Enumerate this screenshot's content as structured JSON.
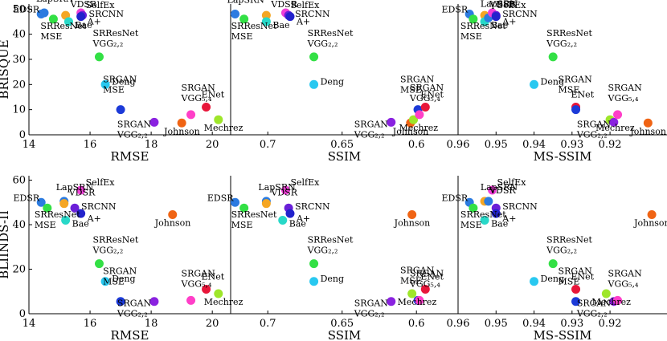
{
  "colors": {
    "EDSR": "#2b7be0",
    "LapSRN": "#2b7be0",
    "VDSR": "#f5a623",
    "SelfEx": "#f040d8",
    "SRCNN": "#6a1fd8",
    "SRResNet-MSE": "#33e045",
    "Bae": "#28d8c8",
    "A+": "#2222cc",
    "SRResNet-VGG": "#33e045",
    "Deng": "#28c8f0",
    "SRGAN-MSE": "#1c3ad8",
    "SRGAN-VGG22": "#8a22e0",
    "SRGAN-VGG54": "#ff3fc8",
    "ENet": "#e8163a",
    "Mechrez": "#9ee62a",
    "Johnson": "#f06414"
  },
  "chart_data": [
    {
      "id": "brisque-rmse",
      "type": "scatter",
      "xlabel": "RMSE",
      "ylabel": "BRISQUE",
      "xlim": [
        14,
        20.6
      ],
      "ylim": [
        0,
        52
      ],
      "xticks": [
        "14",
        "16",
        "18",
        "20"
      ],
      "yticks": [
        "0",
        "10",
        "20",
        "30",
        "40",
        "50"
      ],
      "points": [
        {
          "name": "EDSR",
          "x": 14.4,
          "y": 48,
          "label": [
            "EDSR"
          ]
        },
        {
          "name": "LapSRN",
          "x": 14.5,
          "y": 48.5,
          "label": [
            "LapSRN"
          ]
        },
        {
          "name": "SRResNet-MSE",
          "x": 14.8,
          "y": 46,
          "label": [
            "SRResNet",
            "MSE"
          ]
        },
        {
          "name": "VDSR",
          "x": 15.2,
          "y": 47.5,
          "label": [
            "VDSR"
          ]
        },
        {
          "name": "Bae",
          "x": 15.3,
          "y": 45,
          "label": [
            "Bae"
          ]
        },
        {
          "name": "SelfEx",
          "x": 15.7,
          "y": 48.5,
          "label": [
            "SelfEx"
          ]
        },
        {
          "name": "SRCNN",
          "x": 15.75,
          "y": 47.5,
          "label": [
            "SRCNN"
          ]
        },
        {
          "name": "A+",
          "x": 15.7,
          "y": 47,
          "label": [
            "A+"
          ]
        },
        {
          "name": "SRResNet-VGG",
          "x": 16.3,
          "y": 31,
          "label": [
            "SRResNet",
            "VGG₂,₂"
          ]
        },
        {
          "name": "Deng",
          "x": 16.5,
          "y": 20,
          "label": [
            "Deng"
          ]
        },
        {
          "name": "SRGAN-MSE",
          "x": 17.0,
          "y": 10,
          "label": [
            "SRGAN",
            "MSE"
          ]
        },
        {
          "name": "SRGAN-VGG22",
          "x": 18.1,
          "y": 5,
          "label": [
            "SRGAN",
            "VGG₂,₂"
          ]
        },
        {
          "name": "Johnson",
          "x": 19.0,
          "y": 4.7,
          "label": [
            "Johnson"
          ]
        },
        {
          "name": "SRGAN-VGG54",
          "x": 19.3,
          "y": 8,
          "label": [
            "SRGAN",
            "VGG₅,₄"
          ]
        },
        {
          "name": "ENet",
          "x": 19.8,
          "y": 11,
          "label": [
            "ENet"
          ]
        },
        {
          "name": "Mechrez",
          "x": 20.2,
          "y": 6,
          "label": [
            "Mechrez"
          ]
        }
      ]
    },
    {
      "id": "brisque-ssim",
      "type": "scatter",
      "xlabel": "SSIM",
      "ylabel": "",
      "xlim": [
        0.725,
        0.572
      ],
      "ylim": [
        0,
        52
      ],
      "xticks": [
        "0.7",
        "0.65",
        "0.6"
      ],
      "yticks": [],
      "points": [
        {
          "name": "LapSRN",
          "x": 0.722,
          "y": 48,
          "label": [
            "LapSRN"
          ]
        },
        {
          "name": "SRResNet-MSE",
          "x": 0.716,
          "y": 46,
          "label": [
            "SRResNet",
            "MSE"
          ]
        },
        {
          "name": "VDSR",
          "x": 0.701,
          "y": 47.5,
          "label": [
            "VDSR"
          ]
        },
        {
          "name": "Bae",
          "x": 0.701,
          "y": 45,
          "label": [
            "Bae"
          ]
        },
        {
          "name": "SelfEx",
          "x": 0.688,
          "y": 48.5,
          "label": [
            "SelfEx"
          ]
        },
        {
          "name": "SRCNN",
          "x": 0.686,
          "y": 47.5,
          "label": [
            "SRCNN"
          ]
        },
        {
          "name": "A+",
          "x": 0.685,
          "y": 47,
          "label": [
            "A+"
          ]
        },
        {
          "name": "SRResNet-VGG",
          "x": 0.669,
          "y": 31,
          "label": [
            "SRResNet",
            "VGG₂,₂"
          ]
        },
        {
          "name": "Deng",
          "x": 0.669,
          "y": 20,
          "label": [
            "Deng"
          ]
        },
        {
          "name": "SRGAN-VGG22",
          "x": 0.617,
          "y": 5,
          "label": [
            "SRGAN",
            "VGG₂,₂"
          ]
        },
        {
          "name": "Johnson",
          "x": 0.604,
          "y": 4.7,
          "label": [
            "Johnson"
          ]
        },
        {
          "name": "Mechrez",
          "x": 0.602,
          "y": 6,
          "label": [
            "Mechrez"
          ]
        },
        {
          "name": "SRGAN-MSE",
          "x": 0.599,
          "y": 10,
          "label": [
            "SRGAN",
            "MSE"
          ]
        },
        {
          "name": "SRGAN-VGG54",
          "x": 0.598,
          "y": 8,
          "label": [
            "SRGAN",
            "VGG₅,₄"
          ]
        },
        {
          "name": "ENet",
          "x": 0.594,
          "y": 11,
          "label": [
            "ENet"
          ]
        }
      ]
    },
    {
      "id": "brisque-msssim",
      "type": "scatter",
      "xlabel": "MS-SSIM",
      "ylabel": "",
      "xlim": [
        0.96,
        0.905
      ],
      "ylim": [
        0,
        52
      ],
      "xticks": [
        "0.96",
        "0.95",
        "0.94",
        "0.93",
        "0.92"
      ],
      "yticks": [],
      "points": [
        {
          "name": "EDSR",
          "x": 0.957,
          "y": 48,
          "label": [
            "EDSR"
          ]
        },
        {
          "name": "SRResNet-MSE",
          "x": 0.956,
          "y": 46,
          "label": [
            "SRResNet",
            "MSE"
          ]
        },
        {
          "name": "VDSR",
          "x": 0.953,
          "y": 47.5,
          "label": [
            "VDSR"
          ]
        },
        {
          "name": "Bae",
          "x": 0.953,
          "y": 45,
          "label": [
            "Bae"
          ]
        },
        {
          "name": "LapSRN",
          "x": 0.952,
          "y": 46.5,
          "label": [
            "LapSRN"
          ]
        },
        {
          "name": "SelfEx",
          "x": 0.951,
          "y": 48.5,
          "label": [
            "SelfEx"
          ]
        },
        {
          "name": "SRCNN",
          "x": 0.95,
          "y": 47.5,
          "label": [
            "SRCNN"
          ]
        },
        {
          "name": "A+",
          "x": 0.95,
          "y": 47,
          "label": [
            "A+"
          ]
        },
        {
          "name": "SRResNet-VGG",
          "x": 0.935,
          "y": 31,
          "label": [
            "SRResNet",
            "VGG₂,₂"
          ]
        },
        {
          "name": "Deng",
          "x": 0.94,
          "y": 20,
          "label": [
            "Deng"
          ]
        },
        {
          "name": "ENet",
          "x": 0.929,
          "y": 11,
          "label": [
            "ENet"
          ]
        },
        {
          "name": "SRGAN-MSE",
          "x": 0.929,
          "y": 10,
          "label": [
            "SRGAN",
            "MSE"
          ]
        },
        {
          "name": "Mechrez",
          "x": 0.92,
          "y": 6,
          "label": [
            "Mechrez"
          ]
        },
        {
          "name": "SRGAN-VGG22",
          "x": 0.919,
          "y": 5,
          "label": [
            "SRGAN",
            "VGG₂,₂"
          ]
        },
        {
          "name": "SRGAN-VGG54",
          "x": 0.918,
          "y": 8,
          "label": [
            "SRGAN",
            "VGG₅,₄"
          ]
        },
        {
          "name": "Johnson",
          "x": 0.91,
          "y": 4.7,
          "label": [
            "Johnson"
          ]
        }
      ]
    },
    {
      "id": "bliinds-rmse",
      "type": "scatter",
      "xlabel": "RMSE",
      "ylabel": "BLIINDS-II",
      "xlim": [
        14,
        20.6
      ],
      "ylim": [
        0,
        62
      ],
      "xticks": [
        "14",
        "16",
        "18",
        "20"
      ],
      "yticks": [
        "0",
        "20",
        "40",
        "60"
      ],
      "points": [
        {
          "name": "EDSR",
          "x": 14.4,
          "y": 50,
          "label": [
            "EDSR"
          ]
        },
        {
          "name": "SRResNet-MSE",
          "x": 14.6,
          "y": 47.5,
          "label": [
            "SRResNet",
            "MSE"
          ]
        },
        {
          "name": "LapSRN",
          "x": 15.15,
          "y": 50.5,
          "label": [
            "LapSRN"
          ]
        },
        {
          "name": "VDSR",
          "x": 15.15,
          "y": 49.5,
          "label": [
            "VDSR"
          ]
        },
        {
          "name": "Bae",
          "x": 15.2,
          "y": 42,
          "label": [
            "Bae"
          ]
        },
        {
          "name": "SRCNN",
          "x": 15.5,
          "y": 47.5,
          "label": [
            "SRCNN"
          ]
        },
        {
          "name": "SelfEx",
          "x": 15.7,
          "y": 55.5,
          "label": [
            "SelfEx"
          ]
        },
        {
          "name": "A+",
          "x": 15.7,
          "y": 45,
          "label": [
            "A+"
          ]
        },
        {
          "name": "Johnson",
          "x": 18.7,
          "y": 44.5,
          "label": [
            "Johnson"
          ]
        },
        {
          "name": "SRResNet-VGG",
          "x": 16.3,
          "y": 22.5,
          "label": [
            "SRResNet",
            "VGG₂,₂"
          ]
        },
        {
          "name": "Deng",
          "x": 16.5,
          "y": 14.5,
          "label": [
            "Deng"
          ]
        },
        {
          "name": "SRGAN-MSE",
          "x": 17.0,
          "y": 5.5,
          "label": [
            "SRGAN",
            "MSE"
          ]
        },
        {
          "name": "SRGAN-VGG22",
          "x": 18.1,
          "y": 5.5,
          "label": [
            "SRGAN",
            "VGG₂,₂"
          ]
        },
        {
          "name": "SRGAN-VGG54",
          "x": 19.3,
          "y": 6,
          "label": [
            "SRGAN",
            "VGG₅,₄"
          ]
        },
        {
          "name": "ENet",
          "x": 19.8,
          "y": 11,
          "label": [
            "ENet"
          ]
        },
        {
          "name": "Mechrez",
          "x": 20.2,
          "y": 9,
          "label": [
            "Mechrez"
          ]
        }
      ]
    },
    {
      "id": "bliinds-ssim",
      "type": "scatter",
      "xlabel": "SSIM",
      "ylabel": "",
      "xlim": [
        0.725,
        0.572
      ],
      "ylim": [
        0,
        62
      ],
      "xticks": [
        "0.7",
        "0.65",
        "0.6"
      ],
      "yticks": [],
      "points": [
        {
          "name": "EDSR",
          "x": 0.722,
          "y": 50,
          "label": [
            "EDSR"
          ]
        },
        {
          "name": "SRResNet-MSE",
          "x": 0.716,
          "y": 47.5,
          "label": [
            "SRResNet",
            "MSE"
          ]
        },
        {
          "name": "LapSRN",
          "x": 0.701,
          "y": 50.5,
          "label": [
            "LapSRN"
          ]
        },
        {
          "name": "VDSR",
          "x": 0.701,
          "y": 49.5,
          "label": [
            "VDSR"
          ]
        },
        {
          "name": "Bae",
          "x": 0.69,
          "y": 42,
          "label": [
            "Bae"
          ]
        },
        {
          "name": "SelfEx",
          "x": 0.688,
          "y": 55.5,
          "label": [
            "SelfEx"
          ]
        },
        {
          "name": "SRCNN",
          "x": 0.686,
          "y": 47.5,
          "label": [
            "SRCNN"
          ]
        },
        {
          "name": "A+",
          "x": 0.685,
          "y": 45,
          "label": [
            "A+"
          ]
        },
        {
          "name": "Johnson",
          "x": 0.603,
          "y": 44.5,
          "label": [
            "Johnson"
          ]
        },
        {
          "name": "SRResNet-VGG",
          "x": 0.669,
          "y": 22.5,
          "label": [
            "SRResNet",
            "VGG₂,₂"
          ]
        },
        {
          "name": "Deng",
          "x": 0.669,
          "y": 14.5,
          "label": [
            "Deng"
          ]
        },
        {
          "name": "SRGAN-VGG22",
          "x": 0.617,
          "y": 5.5,
          "label": [
            "SRGAN",
            "VGG₂,₂"
          ]
        },
        {
          "name": "Mechrez",
          "x": 0.603,
          "y": 9,
          "label": [
            "Mechrez"
          ]
        },
        {
          "name": "SRGAN-MSE",
          "x": 0.599,
          "y": 6,
          "label": [
            "SRGAN",
            "MSE"
          ]
        },
        {
          "name": "SRGAN-VGG54",
          "x": 0.598,
          "y": 6,
          "label": [
            "SRGAN",
            "VGG₅,₄"
          ]
        },
        {
          "name": "ENet",
          "x": 0.594,
          "y": 11,
          "label": [
            "ENet"
          ]
        }
      ]
    },
    {
      "id": "bliinds-msssim",
      "type": "scatter",
      "xlabel": "MS-SSIM",
      "ylabel": "",
      "xlim": [
        0.96,
        0.905
      ],
      "ylim": [
        0,
        62
      ],
      "xticks": [
        "0.96",
        "0.95",
        "0.94",
        "0.93",
        "0.92"
      ],
      "yticks": [],
      "points": [
        {
          "name": "EDSR",
          "x": 0.957,
          "y": 50,
          "label": [
            "EDSR"
          ]
        },
        {
          "name": "SRResNet-MSE",
          "x": 0.956,
          "y": 47.5,
          "label": [
            "SRResNet",
            "MSE"
          ]
        },
        {
          "name": "VDSR",
          "x": 0.953,
          "y": 50.5,
          "label": [
            "VDSR"
          ]
        },
        {
          "name": "LapSRN",
          "x": 0.952,
          "y": 50.5,
          "label": [
            "LapSRN"
          ]
        },
        {
          "name": "Bae",
          "x": 0.953,
          "y": 42,
          "label": [
            "Bae"
          ]
        },
        {
          "name": "SelfEx",
          "x": 0.951,
          "y": 55.5,
          "label": [
            "SelfEx"
          ]
        },
        {
          "name": "SRCNN",
          "x": 0.95,
          "y": 47.5,
          "label": [
            "SRCNN"
          ]
        },
        {
          "name": "A+",
          "x": 0.95,
          "y": 45,
          "label": [
            "A+"
          ]
        },
        {
          "name": "Johnson",
          "x": 0.909,
          "y": 44.5,
          "label": [
            "Johnson"
          ]
        },
        {
          "name": "SRResNet-VGG",
          "x": 0.935,
          "y": 22.5,
          "label": [
            "SRResNet",
            "VGG₂,₂"
          ]
        },
        {
          "name": "Deng",
          "x": 0.94,
          "y": 14.5,
          "label": [
            "Deng"
          ]
        },
        {
          "name": "ENet",
          "x": 0.929,
          "y": 11,
          "label": [
            "ENet"
          ]
        },
        {
          "name": "SRGAN-MSE",
          "x": 0.929,
          "y": 5.5,
          "label": [
            "SRGAN",
            "MSE"
          ]
        },
        {
          "name": "Mechrez",
          "x": 0.921,
          "y": 9,
          "label": [
            "Mechrez"
          ]
        },
        {
          "name": "SRGAN-VGG22",
          "x": 0.919,
          "y": 5.5,
          "label": [
            "SRGAN",
            "VGG₂,₂"
          ]
        },
        {
          "name": "SRGAN-VGG54",
          "x": 0.918,
          "y": 6,
          "label": [
            "SRGAN",
            "VGG₅,₄"
          ]
        }
      ]
    }
  ]
}
